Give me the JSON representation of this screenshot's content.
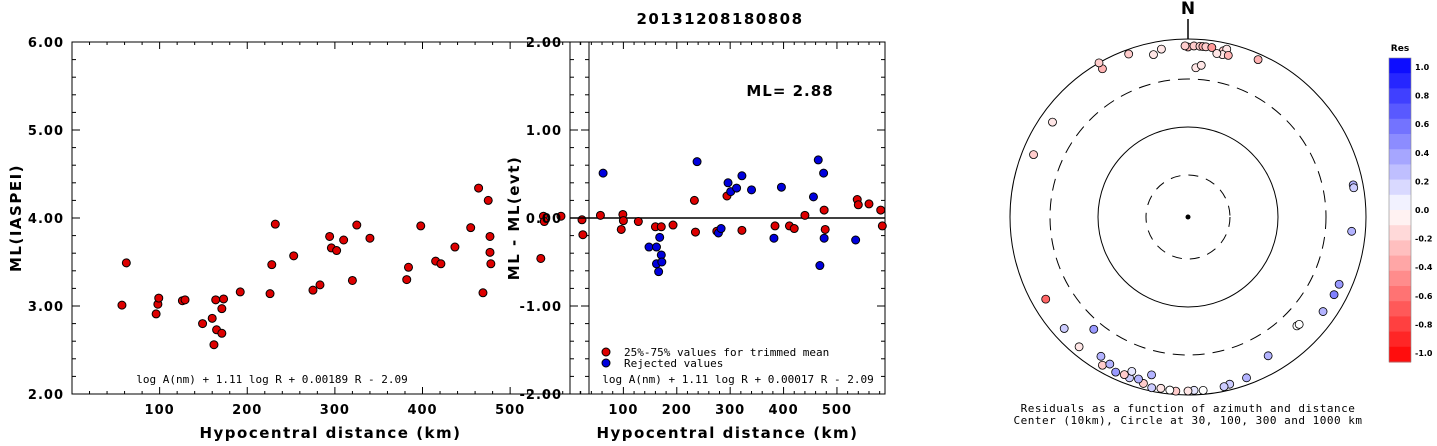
{
  "page_title": "20131208180808",
  "chart_data": [
    {
      "type": "scatter",
      "id": "left",
      "xlabel": "Hypocentral distance (km)",
      "ylabel": "ML(IASPEI)",
      "xlim": [
        0,
        590
      ],
      "ylim": [
        2.0,
        6.0
      ],
      "x_ticks": [
        "100",
        "200",
        "300",
        "400",
        "500"
      ],
      "y_ticks": [
        "2.00",
        "3.00",
        "4.00",
        "5.00",
        "6.00"
      ],
      "formula": "log A(nm) + 1.11 log R + 0.00189 R - 2.09",
      "series": [
        {
          "color": "#dd0000",
          "points": [
            [
              57,
              3.01
            ],
            [
              62,
              3.49
            ],
            [
              96,
              2.91
            ],
            [
              98,
              3.02
            ],
            [
              99,
              3.09
            ],
            [
              126,
              3.06
            ],
            [
              129,
              3.07
            ],
            [
              149,
              2.8
            ],
            [
              160,
              2.86
            ],
            [
              162,
              2.56
            ],
            [
              164,
              3.07
            ],
            [
              165,
              2.73
            ],
            [
              171,
              2.69
            ],
            [
              171,
              2.97
            ],
            [
              173,
              3.08
            ],
            [
              192,
              3.16
            ],
            [
              226,
              3.14
            ],
            [
              228,
              3.47
            ],
            [
              232,
              3.93
            ],
            [
              253,
              3.57
            ],
            [
              275,
              3.18
            ],
            [
              283,
              3.24
            ],
            [
              294,
              3.79
            ],
            [
              296,
              3.66
            ],
            [
              302,
              3.63
            ],
            [
              310,
              3.75
            ],
            [
              320,
              3.29
            ],
            [
              325,
              3.92
            ],
            [
              340,
              3.77
            ],
            [
              382,
              3.3
            ],
            [
              384,
              3.44
            ],
            [
              398,
              3.91
            ],
            [
              415,
              3.51
            ],
            [
              421,
              3.48
            ],
            [
              437,
              3.67
            ],
            [
              455,
              3.89
            ],
            [
              464,
              4.34
            ],
            [
              469,
              3.15
            ],
            [
              475,
              4.2
            ],
            [
              477,
              3.79
            ],
            [
              477,
              3.61
            ],
            [
              478,
              3.48
            ],
            [
              535,
              3.54
            ],
            [
              538,
              4.02
            ],
            [
              539,
              3.96
            ],
            [
              558,
              4.02
            ],
            [
              582,
              3.98
            ],
            [
              583,
              3.81
            ]
          ]
        }
      ]
    },
    {
      "type": "scatter",
      "id": "middle",
      "xlabel": "Hypocentral distance (km)",
      "ylabel": "ML - ML(evt)",
      "xlim": [
        0,
        590
      ],
      "ylim": [
        -2.0,
        2.0
      ],
      "x_ticks": [
        "100",
        "200",
        "300",
        "400",
        "500"
      ],
      "y_ticks": [
        "-2.00",
        "-1.00",
        "0.00",
        "1.00",
        "2.00"
      ],
      "annotation": "ML= 2.88",
      "formula": "log A(nm) + 1.11 log R + 0.00017 R - 2.09",
      "series": [
        {
          "name": "25%-75% values for trimmed mean",
          "color": "#dd0000",
          "points": [
            [
              57,
              0.03
            ],
            [
              96,
              -0.13
            ],
            [
              99,
              0.04
            ],
            [
              100,
              -0.03
            ],
            [
              128,
              -0.04
            ],
            [
              160,
              -0.1
            ],
            [
              171,
              -0.1
            ],
            [
              193,
              -0.08
            ],
            [
              233,
              0.2
            ],
            [
              235,
              -0.16
            ],
            [
              275,
              -0.15
            ],
            [
              294,
              0.25
            ],
            [
              322,
              -0.14
            ],
            [
              384,
              -0.09
            ],
            [
              411,
              -0.09
            ],
            [
              420,
              -0.12
            ],
            [
              440,
              0.03
            ],
            [
              476,
              0.09
            ],
            [
              478,
              -0.13
            ],
            [
              538,
              0.21
            ],
            [
              540,
              0.15
            ],
            [
              560,
              0.16
            ],
            [
              582,
              0.09
            ],
            [
              585,
              -0.09
            ]
          ]
        },
        {
          "name": "Rejected values",
          "color": "#0000dd",
          "points": [
            [
              62,
              0.51
            ],
            [
              148,
              -0.33
            ],
            [
              162,
              -0.52
            ],
            [
              162,
              -0.33
            ],
            [
              166,
              -0.61
            ],
            [
              168,
              -0.22
            ],
            [
              171,
              -0.42
            ],
            [
              172,
              -0.5
            ],
            [
              238,
              0.64
            ],
            [
              278,
              -0.17
            ],
            [
              283,
              -0.12
            ],
            [
              296,
              0.4
            ],
            [
              301,
              0.3
            ],
            [
              312,
              0.34
            ],
            [
              322,
              0.48
            ],
            [
              340,
              0.32
            ],
            [
              382,
              -0.23
            ],
            [
              396,
              0.35
            ],
            [
              456,
              0.24
            ],
            [
              465,
              0.66
            ],
            [
              468,
              -0.54
            ],
            [
              475,
              0.51
            ],
            [
              476,
              -0.23
            ],
            [
              535,
              -0.25
            ]
          ]
        }
      ]
    },
    {
      "type": "scatter",
      "id": "polar",
      "title": "N",
      "caption_line1": "Residuals as a function of azimuth and distance",
      "caption_line2": "Center (10km), Circle at 30, 100, 300 and 1000 km",
      "colorbar_title": "Res",
      "colorbar_labels": [
        "1.0",
        "0.8",
        "0.6",
        "0.4",
        "0.2",
        "0.0",
        "-0.2",
        "-0.4",
        "-0.6",
        "-0.8",
        "-1.0"
      ],
      "points_az_dist_res": [
        [
          3,
          500,
          -0.1
        ],
        [
          5,
          550,
          -0.1
        ],
        [
          0,
          860,
          -0.3
        ],
        [
          -1,
          880,
          -0.2
        ],
        [
          2,
          880,
          -0.2
        ],
        [
          4,
          880,
          -0.2
        ],
        [
          5,
          880,
          -0.3
        ],
        [
          6,
          880,
          -0.2
        ],
        [
          8,
          880,
          -0.4
        ],
        [
          12,
          860,
          -0.2
        ],
        [
          13,
          900,
          -0.1
        ],
        [
          12,
          790,
          -0.1
        ],
        [
          14,
          800,
          -0.3
        ],
        [
          10,
          790,
          -0.1
        ],
        [
          -12,
          790,
          -0.1
        ],
        [
          -9,
          860,
          -0.1
        ],
        [
          -20,
          920,
          -0.2
        ],
        [
          -30,
          880,
          -0.3
        ],
        [
          -30,
          1000,
          -0.2
        ],
        [
          -55,
          780,
          -0.1
        ],
        [
          -68,
          800,
          -0.2
        ],
        [
          24,
          900,
          -0.3
        ],
        [
          79,
          830,
          0.3
        ],
        [
          80,
          830,
          0.2
        ],
        [
          95,
          760,
          0.3
        ],
        [
          114,
          780,
          0.4
        ],
        [
          118,
          780,
          0.5
        ],
        [
          125,
          770,
          0.3
        ],
        [
          150,
          690,
          0.3
        ],
        [
          135,
          580,
          0.0
        ],
        [
          134,
          590,
          0.0
        ],
        [
          -140,
          450,
          0.4
        ],
        [
          160,
          880,
          0.3
        ],
        [
          166,
          900,
          0.2
        ],
        [
          168,
          920,
          0.2
        ],
        [
          175,
          930,
          0.0
        ],
        [
          178,
          920,
          0.1
        ],
        [
          180,
          930,
          -0.1
        ],
        [
          -176,
          940,
          -0.2
        ],
        [
          -174,
          930,
          0.0
        ],
        [
          -171,
          920,
          -0.1
        ],
        [
          -168,
          940,
          0.2
        ],
        [
          -165,
          900,
          -0.2
        ],
        [
          -160,
          880,
          0.2
        ],
        [
          -155,
          880,
          0.4
        ],
        [
          -150,
          880,
          -0.2
        ],
        [
          -152,
          800,
          0.3
        ],
        [
          -160,
          760,
          0.1
        ],
        [
          -120,
          760,
          -0.6
        ],
        [
          -132,
          800,
          0.2
        ],
        [
          -140,
          850,
          -0.1
        ],
        [
          -148,
          760,
          0.3
        ],
        [
          -158,
          860,
          -0.2
        ],
        [
          -167,
          720,
          0.3
        ],
        [
          -163,
          850,
          0.3
        ]
      ]
    }
  ]
}
